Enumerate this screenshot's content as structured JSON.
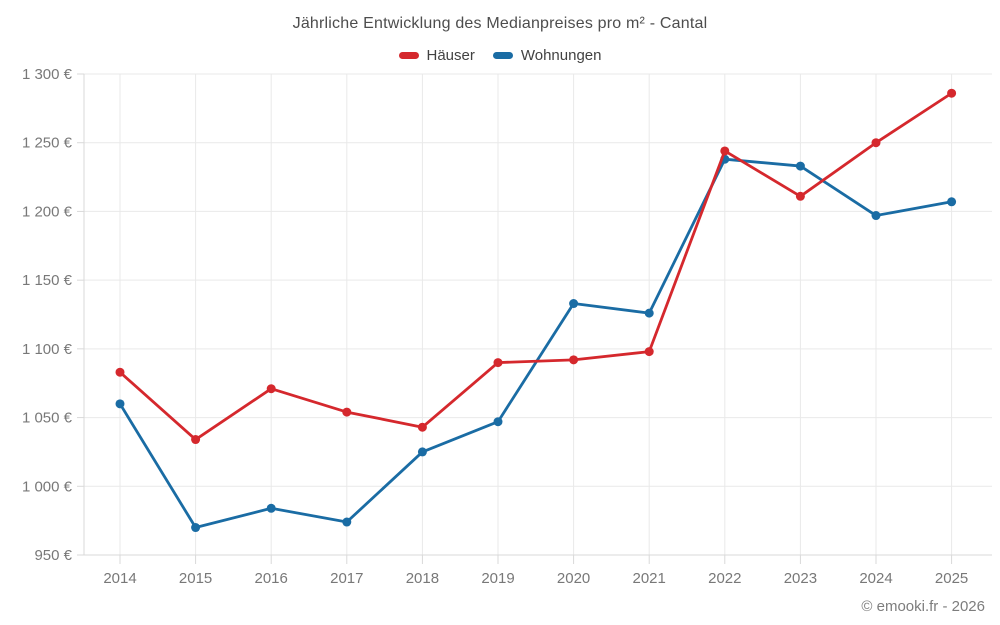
{
  "footer": {
    "text": "© emooki.fr - 2026"
  },
  "chart_data": {
    "type": "line",
    "title": "Jährliche Entwicklung des Medianpreises pro m² - Cantal",
    "categories": [
      "2014",
      "2015",
      "2016",
      "2017",
      "2018",
      "2019",
      "2020",
      "2021",
      "2022",
      "2023",
      "2024",
      "2025"
    ],
    "series": [
      {
        "name": "Häuser",
        "color": "#d5282d",
        "values": [
          1083,
          1034,
          1071,
          1054,
          1043,
          1090,
          1092,
          1098,
          1244,
          1211,
          1250,
          1286
        ]
      },
      {
        "name": "Wohnungen",
        "color": "#1a6ca4",
        "values": [
          1060,
          970,
          984,
          974,
          1025,
          1047,
          1133,
          1126,
          1238,
          1233,
          1197,
          1207
        ]
      }
    ],
    "ylim": [
      950,
      1300
    ],
    "y_tick_step": 50,
    "y_suffix": " €",
    "y_tick_labels": [
      "950 €",
      "1 000 €",
      "1 050 €",
      "1 100 €",
      "1 150 €",
      "1 200 €",
      "1 250 €",
      "1 300 €"
    ],
    "grid": true,
    "legend_position": "top",
    "marker": "circle",
    "colors": {
      "grid": "#e9e9e9",
      "axis": "#d9d9d9",
      "tick_text": "#787878"
    }
  }
}
